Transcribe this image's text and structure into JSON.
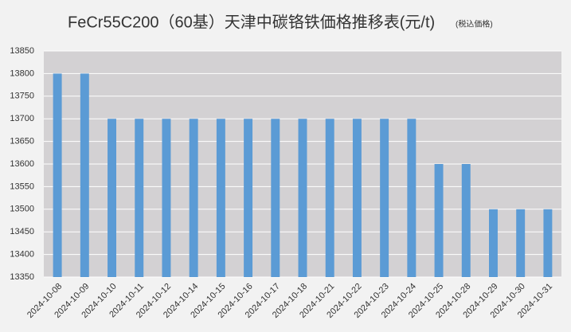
{
  "chart_data": {
    "type": "bar",
    "title": "FeCr55C200（60基）天津中碳铬铁価格推移表(元/t)",
    "subtitle": "(税込価格)",
    "categories": [
      "2024-10-08",
      "2024-10-09",
      "2024-10-10",
      "2024-10-11",
      "2024-10-12",
      "2024-10-14",
      "2024-10-15",
      "2024-10-16",
      "2024-10-17",
      "2024-10-18",
      "2024-10-21",
      "2024-10-22",
      "2024-10-23",
      "2024-10-24",
      "2024-10-25",
      "2024-10-28",
      "2024-10-29",
      "2024-10-30",
      "2024-10-31"
    ],
    "values": [
      13800,
      13800,
      13700,
      13700,
      13700,
      13700,
      13700,
      13700,
      13700,
      13700,
      13700,
      13700,
      13700,
      13700,
      13600,
      13600,
      13500,
      13500,
      13500
    ],
    "color": "#5b9bd5",
    "ylim": [
      13350,
      13850
    ],
    "yticks": [
      13350,
      13400,
      13450,
      13500,
      13550,
      13600,
      13650,
      13700,
      13750,
      13800,
      13850
    ],
    "grid": true
  }
}
